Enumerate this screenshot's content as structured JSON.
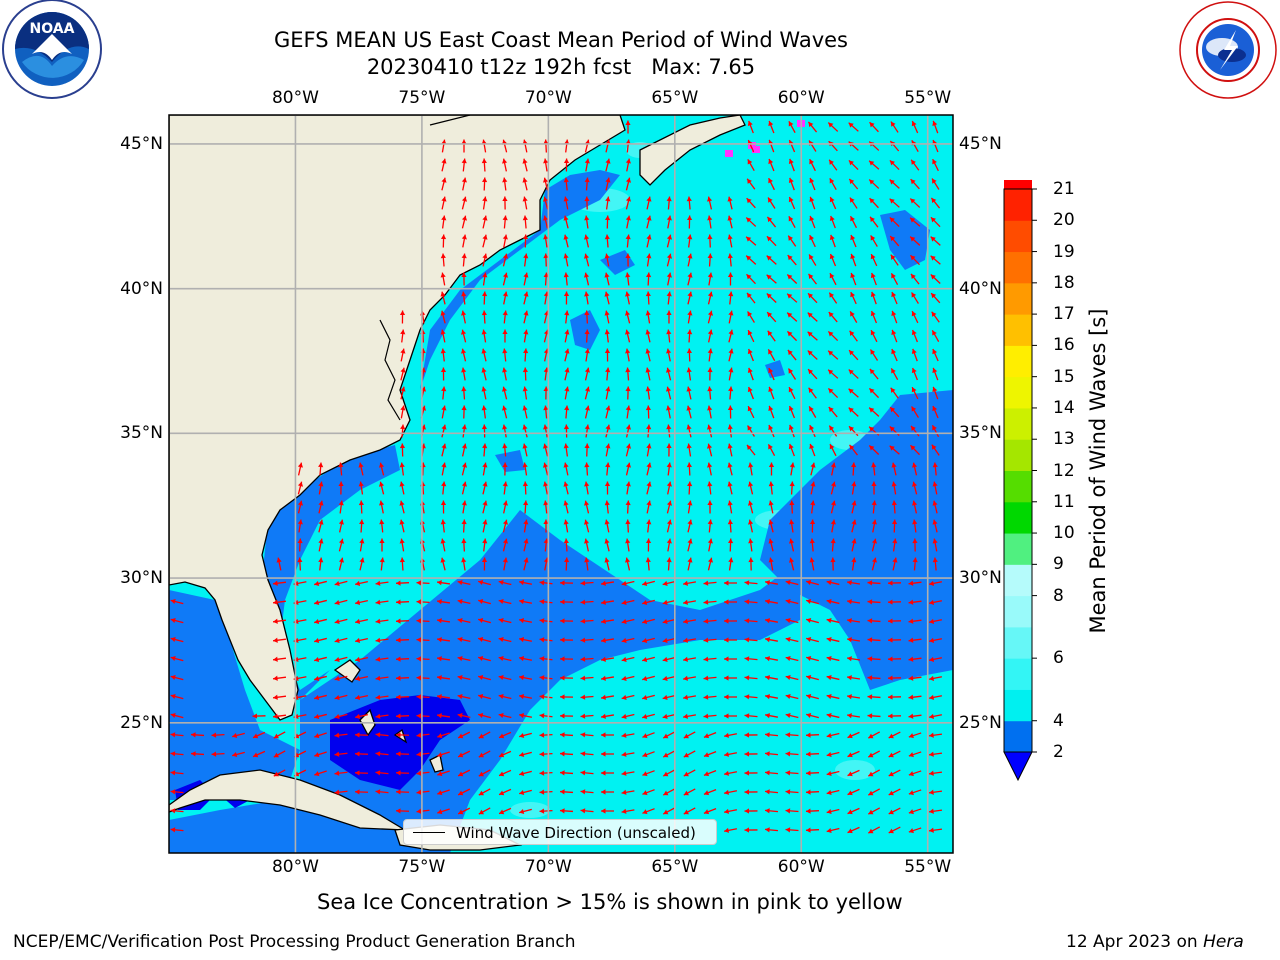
{
  "header": {
    "title_line1": "GEFS MEAN US East Coast Mean Period of Wind Waves",
    "title_line2": "20230410 t12z 192h fcst   Max: 7.65"
  },
  "logos": {
    "left": "NOAA",
    "left_ring_text": "NATIONAL OCEANIC AND ATMOSPHERIC ADMINISTRATION · U.S. DEPARTMENT OF COMMERCE",
    "right_ring_text": "NATIONAL WEATHER SERVICE"
  },
  "map": {
    "lon_labels": [
      "80°W",
      "75°W",
      "70°W",
      "65°W",
      "60°W",
      "55°W"
    ],
    "lat_labels": [
      "45°N",
      "40°N",
      "35°N",
      "30°N",
      "25°N"
    ],
    "lon_range": [
      -85,
      -54
    ],
    "lat_range": [
      20.5,
      46
    ],
    "legend_text": "Wind Wave Direction (unscaled)",
    "colors": {
      "land": "#efeddc",
      "bin_2_4": "#0f7af7",
      "bin_4_6": "#00f2f2",
      "bin_6_7": "#43f5f5",
      "under_2": "#0000ee",
      "arrows": "#ff0000",
      "grid": "#b0b0b0",
      "sea_ice": "#ff33ff"
    }
  },
  "colorbar": {
    "label": "Mean Period of Wind Waves [s]",
    "ticks": [
      "2",
      "4",
      "6",
      "8",
      "9",
      "10",
      "11",
      "12",
      "13",
      "14",
      "15",
      "16",
      "17",
      "18",
      "19",
      "20",
      "21"
    ],
    "levels": [
      2,
      4,
      5,
      6,
      7,
      8,
      9,
      10,
      11,
      12,
      13,
      14,
      15,
      16,
      17,
      18,
      19,
      20,
      21
    ],
    "colors": [
      "#0070f0",
      "#00f0f0",
      "#33f5f5",
      "#66f7f7",
      "#99fafa",
      "#b5fbfb",
      "#50f080",
      "#00d800",
      "#55dd00",
      "#a5e600",
      "#ccf000",
      "#eef500",
      "#ffee00",
      "#ffc000",
      "#ff9a00",
      "#ff7000",
      "#ff4c00",
      "#ff2200",
      "#ff0000"
    ],
    "under_color": "#0000ff"
  },
  "notes": {
    "sea_ice": "Sea Ice Concentration > 15% is shown in pink to yellow"
  },
  "footer": {
    "left": "NCEP/EMC/Verification Post Processing Product Generation Branch",
    "right_date": "12 Apr 2023 on",
    "right_machine": "Hera"
  }
}
